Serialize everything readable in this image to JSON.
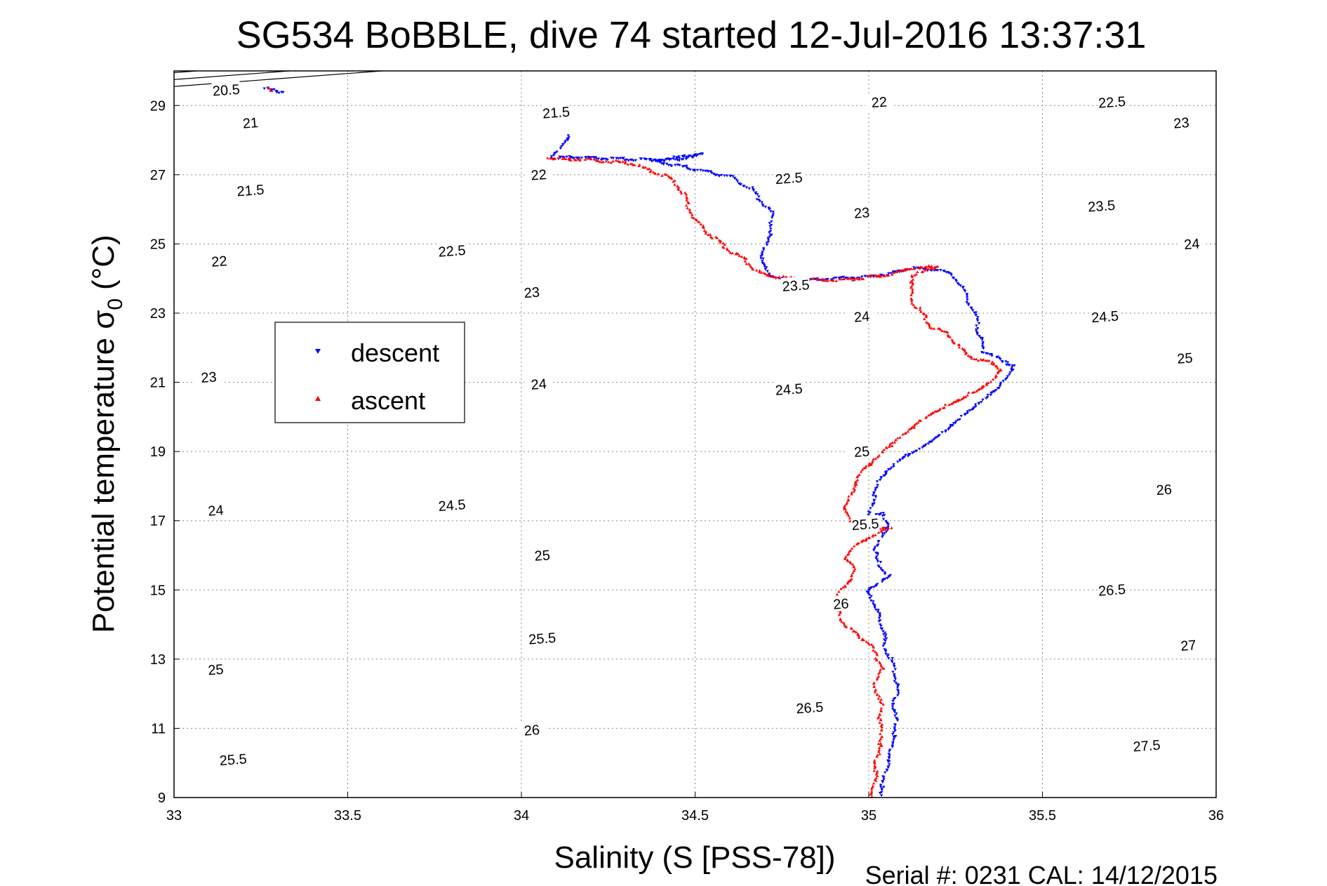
{
  "chart_data": {
    "type": "scatter",
    "title": "SG534 BoBBLE, dive 74 started 12-Jul-2016 13:37:31",
    "xlabel": "Salinity (S [PSS-78])",
    "ylabel_main": "Potential temperature σ",
    "ylabel_sub": "0",
    "ylabel_unit": "(°C)",
    "xlim": [
      33,
      36
    ],
    "ylim": [
      9,
      30
    ],
    "x_ticks": [
      33,
      33.5,
      34,
      34.5,
      35,
      35.5,
      36
    ],
    "y_ticks": [
      9,
      11,
      13,
      15,
      17,
      19,
      21,
      23,
      25,
      27,
      29
    ],
    "grid": true,
    "legend_placement": "left",
    "footer": "Serial #: 0231  CAL: 14/12/2015",
    "colors": {
      "descent": "#0000ff",
      "ascent": "#ff0000",
      "contour": "#000000"
    },
    "contours": [
      {
        "label": "20.5",
        "anchor": [
          29.55,
          29.7
        ],
        "labels": [
          [
            33.15,
            29.45
          ]
        ]
      },
      {
        "label": "21",
        "anchor": [
          29.75,
          27.6
        ],
        "labels": [
          [
            33.22,
            28.5
          ]
        ]
      },
      {
        "label": "21.5",
        "anchor": [
          29.95,
          26.0
        ],
        "labels": [
          [
            33.22,
            26.55
          ],
          [
            34.1,
            28.8
          ]
        ]
      },
      {
        "label": "22",
        "anchor": [
          30.15,
          24.5
        ],
        "labels": [
          [
            33.13,
            24.5
          ],
          [
            34.05,
            27.0
          ],
          [
            35.03,
            29.1
          ]
        ]
      },
      {
        "label": "22.5",
        "anchor": [
          30.35,
          23.0
        ],
        "labels": [
          [
            33.8,
            24.8
          ],
          [
            34.77,
            26.9
          ],
          [
            35.7,
            29.1
          ]
        ]
      },
      {
        "label": "23",
        "anchor": [
          30.55,
          21.5
        ],
        "labels": [
          [
            33.1,
            21.15
          ],
          [
            34.03,
            23.6
          ],
          [
            34.98,
            25.9
          ],
          [
            35.9,
            28.5
          ]
        ]
      },
      {
        "label": "23.5",
        "anchor": [
          30.75,
          20.0
        ],
        "labels": [
          [
            34.79,
            23.8
          ],
          [
            35.67,
            26.1
          ]
        ]
      },
      {
        "label": "24",
        "anchor": [
          30.95,
          18.5
        ],
        "labels": [
          [
            33.12,
            17.3
          ],
          [
            34.05,
            20.95
          ],
          [
            34.98,
            22.9
          ],
          [
            35.93,
            25.0
          ]
        ]
      },
      {
        "label": "24.5",
        "anchor": [
          31.15,
          17.0
        ],
        "labels": [
          [
            33.8,
            17.45
          ],
          [
            34.77,
            20.8
          ],
          [
            35.68,
            22.9
          ]
        ]
      },
      {
        "label": "25",
        "anchor": [
          31.35,
          15.5
        ],
        "labels": [
          [
            33.12,
            12.7
          ],
          [
            34.06,
            16.0
          ],
          [
            34.98,
            19.0
          ],
          [
            35.91,
            21.7
          ]
        ]
      },
      {
        "label": "25.5",
        "anchor": [
          31.55,
          14.0
        ],
        "labels": [
          [
            33.17,
            10.1
          ],
          [
            34.06,
            13.6
          ],
          [
            34.99,
            16.9
          ]
        ]
      },
      {
        "label": "26",
        "anchor": [
          31.75,
          12.5
        ],
        "labels": [
          [
            34.03,
            10.95
          ],
          [
            34.92,
            14.6
          ],
          [
            35.85,
            17.9
          ]
        ]
      },
      {
        "label": "26.5",
        "anchor": [
          31.95,
          11.0
        ],
        "labels": [
          [
            34.83,
            11.6
          ],
          [
            35.7,
            15.0
          ]
        ]
      },
      {
        "label": "27",
        "anchor": [
          32.15,
          9.5
        ],
        "labels": [
          [
            35.92,
            13.4
          ]
        ]
      },
      {
        "label": "27.5",
        "anchor": [
          32.35,
          8.0
        ],
        "labels": [
          [
            35.8,
            10.5
          ]
        ]
      }
    ],
    "series": [
      {
        "name": "descent",
        "marker": "triangle-down",
        "path": [
          [
            33.26,
            29.5
          ],
          [
            33.28,
            29.45
          ],
          [
            33.3,
            29.4
          ],
          [
            33.32,
            29.42
          ],
          [
            34.14,
            28.15
          ],
          [
            34.09,
            27.5
          ],
          [
            34.17,
            27.5
          ],
          [
            34.22,
            27.47
          ],
          [
            34.28,
            27.45
          ],
          [
            34.35,
            27.43
          ],
          [
            34.4,
            27.42
          ],
          [
            34.46,
            27.45
          ],
          [
            34.52,
            27.6
          ],
          [
            34.38,
            27.4
          ],
          [
            34.43,
            27.3
          ],
          [
            34.48,
            27.2
          ],
          [
            34.55,
            27.05
          ],
          [
            34.6,
            26.95
          ],
          [
            34.66,
            26.6
          ],
          [
            34.72,
            25.9
          ],
          [
            34.72,
            25.4
          ],
          [
            34.7,
            24.9
          ],
          [
            34.69,
            24.45
          ],
          [
            34.72,
            24.1
          ],
          [
            34.75,
            23.95
          ],
          [
            34.8,
            23.95
          ],
          [
            34.86,
            23.97
          ],
          [
            34.92,
            24.02
          ],
          [
            35.0,
            24.05
          ],
          [
            35.06,
            24.15
          ],
          [
            35.12,
            24.3
          ],
          [
            35.2,
            24.25
          ],
          [
            35.24,
            24.1
          ],
          [
            35.26,
            23.9
          ],
          [
            35.28,
            23.5
          ],
          [
            35.3,
            23.1
          ],
          [
            35.31,
            22.8
          ],
          [
            35.32,
            22.3
          ],
          [
            35.33,
            21.9
          ],
          [
            35.36,
            21.8
          ],
          [
            35.38,
            21.6
          ],
          [
            35.42,
            21.5
          ],
          [
            35.41,
            21.35
          ],
          [
            35.38,
            20.9
          ],
          [
            35.33,
            20.5
          ],
          [
            35.28,
            20.1
          ],
          [
            35.22,
            19.6
          ],
          [
            35.15,
            19.1
          ],
          [
            35.1,
            18.85
          ],
          [
            35.06,
            18.5
          ],
          [
            35.03,
            18.2
          ],
          [
            35.0,
            17.1
          ],
          [
            35.04,
            17.2
          ],
          [
            35.06,
            16.9
          ],
          [
            35.04,
            16.6
          ],
          [
            35.02,
            16.2
          ],
          [
            35.02,
            15.9
          ],
          [
            35.04,
            15.6
          ],
          [
            35.06,
            15.4
          ],
          [
            35.02,
            15.15
          ],
          [
            34.99,
            14.95
          ],
          [
            35.02,
            14.6
          ],
          [
            35.03,
            14.1
          ],
          [
            35.05,
            13.8
          ],
          [
            35.04,
            13.4
          ],
          [
            35.06,
            13.1
          ],
          [
            35.07,
            12.8
          ],
          [
            35.08,
            12.4
          ],
          [
            35.08,
            12.0
          ],
          [
            35.07,
            11.6
          ],
          [
            35.08,
            11.1
          ],
          [
            35.07,
            10.7
          ],
          [
            35.06,
            10.2
          ],
          [
            35.05,
            9.8
          ],
          [
            35.04,
            9.4
          ],
          [
            35.03,
            9.0
          ]
        ]
      },
      {
        "name": "ascent",
        "marker": "triangle-up",
        "path": [
          [
            33.27,
            29.5
          ],
          [
            33.29,
            29.4
          ],
          [
            34.08,
            27.5
          ],
          [
            34.12,
            27.45
          ],
          [
            34.18,
            27.45
          ],
          [
            34.23,
            27.4
          ],
          [
            34.3,
            27.35
          ],
          [
            34.33,
            27.3
          ],
          [
            34.36,
            27.15
          ],
          [
            34.42,
            26.95
          ],
          [
            34.45,
            26.7
          ],
          [
            34.47,
            26.4
          ],
          [
            34.48,
            26.1
          ],
          [
            34.5,
            25.7
          ],
          [
            34.54,
            25.3
          ],
          [
            34.6,
            24.8
          ],
          [
            34.65,
            24.5
          ],
          [
            34.68,
            24.2
          ],
          [
            34.7,
            24.1
          ],
          [
            34.78,
            24.0
          ],
          [
            34.85,
            23.95
          ],
          [
            34.95,
            23.98
          ],
          [
            35.05,
            24.1
          ],
          [
            35.12,
            24.3
          ],
          [
            35.2,
            24.35
          ],
          [
            35.13,
            24.1
          ],
          [
            35.12,
            23.7
          ],
          [
            35.13,
            23.3
          ],
          [
            35.16,
            22.9
          ],
          [
            35.18,
            22.6
          ],
          [
            35.23,
            22.4
          ],
          [
            35.26,
            22.0
          ],
          [
            35.3,
            21.7
          ],
          [
            35.36,
            21.55
          ],
          [
            35.38,
            21.4
          ],
          [
            35.36,
            21.1
          ],
          [
            35.32,
            20.8
          ],
          [
            35.26,
            20.5
          ],
          [
            35.2,
            20.2
          ],
          [
            35.15,
            19.9
          ],
          [
            35.1,
            19.5
          ],
          [
            35.05,
            19.1
          ],
          [
            35.0,
            18.6
          ],
          [
            34.98,
            18.5
          ],
          [
            34.93,
            17.3
          ],
          [
            34.94,
            17.1
          ],
          [
            34.96,
            16.9
          ],
          [
            35.02,
            16.8
          ],
          [
            35.06,
            16.8
          ],
          [
            34.96,
            16.3
          ],
          [
            34.93,
            15.9
          ],
          [
            34.96,
            15.6
          ],
          [
            34.95,
            15.3
          ],
          [
            34.92,
            15.0
          ],
          [
            34.9,
            14.6
          ],
          [
            34.92,
            14.2
          ],
          [
            34.95,
            13.8
          ],
          [
            35.0,
            13.5
          ],
          [
            35.02,
            13.1
          ],
          [
            35.04,
            12.8
          ],
          [
            35.02,
            12.4
          ],
          [
            35.02,
            12.0
          ],
          [
            35.04,
            11.6
          ],
          [
            35.03,
            11.2
          ],
          [
            35.04,
            10.8
          ],
          [
            35.03,
            10.4
          ],
          [
            35.02,
            10.0
          ],
          [
            35.02,
            9.6
          ],
          [
            35.01,
            9.2
          ],
          [
            35.01,
            9.0
          ]
        ]
      }
    ]
  }
}
